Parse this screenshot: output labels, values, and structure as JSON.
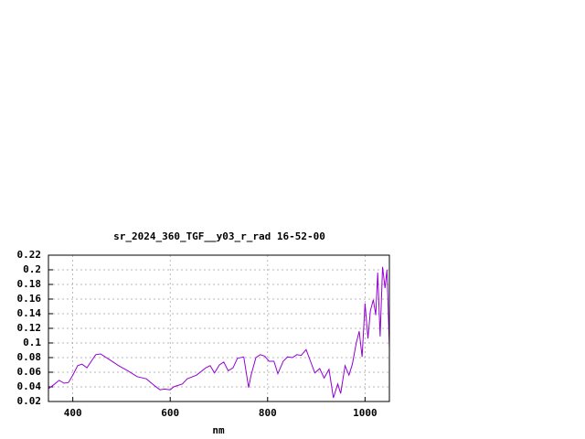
{
  "chart_data": {
    "type": "line",
    "title": "sr_2024_360_TGF__y03_r_rad 16-52-00",
    "x_label": "nm",
    "x": [
      350,
      363,
      372,
      382,
      391,
      400,
      410,
      419,
      429,
      438,
      447,
      457,
      476,
      494,
      513,
      532,
      551,
      569,
      579,
      588,
      600,
      607,
      616,
      625,
      635,
      654,
      673,
      682,
      691,
      701,
      710,
      719,
      729,
      738,
      751,
      761,
      766,
      776,
      785,
      794,
      803,
      813,
      821,
      832,
      841,
      851,
      860,
      869,
      879,
      888,
      897,
      907,
      916,
      926,
      935,
      944,
      950,
      959,
      967,
      974,
      982,
      988,
      994,
      1000,
      1006,
      1011,
      1017,
      1022,
      1026,
      1031,
      1036,
      1041,
      1045,
      1050
    ],
    "series": [
      {
        "name": "sr_2024_360_TGF__y03_r_rad",
        "color": "#9400d3",
        "values": [
          0.0375,
          0.044,
          0.049,
          0.045,
          0.046,
          0.056,
          0.069,
          0.071,
          0.066,
          0.075,
          0.084,
          0.085,
          0.077,
          0.069,
          0.062,
          0.054,
          0.051,
          0.041,
          0.036,
          0.037,
          0.036,
          0.04,
          0.042,
          0.044,
          0.051,
          0.056,
          0.066,
          0.069,
          0.059,
          0.07,
          0.074,
          0.062,
          0.066,
          0.079,
          0.081,
          0.039,
          0.056,
          0.08,
          0.084,
          0.082,
          0.075,
          0.075,
          0.058,
          0.075,
          0.081,
          0.08,
          0.084,
          0.083,
          0.091,
          0.075,
          0.059,
          0.065,
          0.052,
          0.064,
          0.025,
          0.044,
          0.031,
          0.069,
          0.056,
          0.071,
          0.1,
          0.116,
          0.081,
          0.154,
          0.106,
          0.144,
          0.159,
          0.138,
          0.196,
          0.109,
          0.204,
          0.175,
          0.2,
          0.094
        ]
      }
    ],
    "xlim": [
      350,
      1050
    ],
    "xticks": [
      400,
      600,
      800,
      1000
    ],
    "ylim": [
      0.02,
      0.22
    ],
    "yticks": [
      0.02,
      0.04,
      0.06,
      0.08,
      0.1,
      0.12,
      0.14,
      0.16,
      0.18,
      0.2,
      0.22
    ],
    "grid": true
  }
}
